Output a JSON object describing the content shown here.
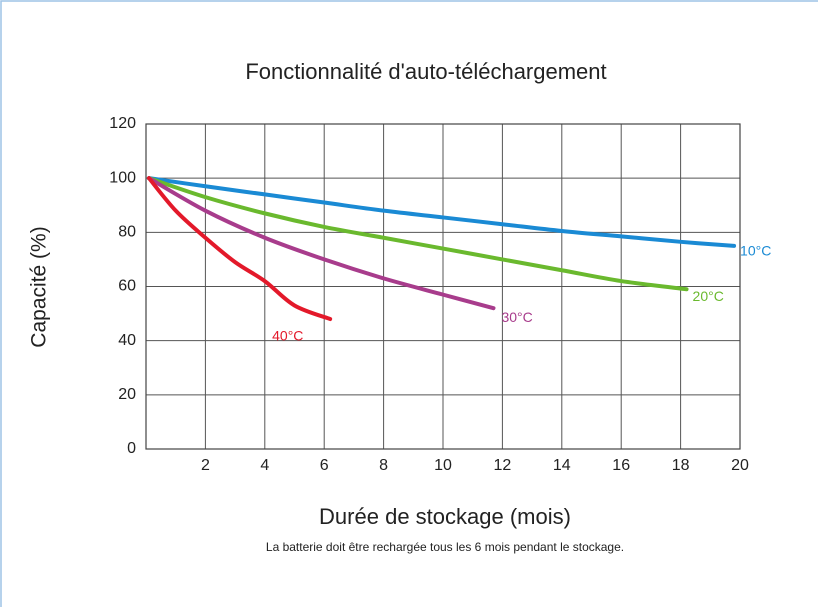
{
  "chart_data": {
    "type": "line",
    "title": "Fonctionnalité d'auto-téléchargement",
    "x_label": "Durée de stockage (mois)",
    "y_label": "Capacité (%)",
    "note": "La batterie doit être rechargée tous les 6 mois pendant le stockage.",
    "xlim": [
      0,
      20
    ],
    "xticks": [
      2,
      4,
      6,
      8,
      10,
      12,
      14,
      16,
      18,
      20
    ],
    "ylim": [
      0,
      120
    ],
    "yticks": [
      0,
      20,
      40,
      60,
      80,
      100,
      120
    ],
    "grid": true,
    "series": [
      {
        "name": "10°C",
        "color": "#1a8ad4",
        "x": [
          0.1,
          2,
          4,
          6,
          8,
          10,
          12,
          14,
          16,
          18,
          19.8
        ],
        "values": [
          100,
          97,
          94,
          91,
          88,
          85.5,
          83,
          80.5,
          78.5,
          76.5,
          75
        ]
      },
      {
        "name": "20°C",
        "color": "#6ab92e",
        "x": [
          0.1,
          2,
          4,
          6,
          8,
          10,
          12,
          14,
          16,
          18.2
        ],
        "values": [
          100,
          93,
          87,
          82,
          78,
          74,
          70,
          66,
          62,
          59
        ]
      },
      {
        "name": "30°C",
        "color": "#a83c8c",
        "x": [
          0.1,
          2,
          4,
          6,
          8,
          10,
          11.7
        ],
        "values": [
          100,
          88,
          78,
          70,
          63,
          57,
          52
        ]
      },
      {
        "name": "40°C",
        "color": "#e3192a",
        "x": [
          0.1,
          1,
          2,
          3,
          4,
          5,
          6.2
        ],
        "values": [
          100,
          88,
          78,
          69,
          62,
          53,
          48
        ]
      }
    ]
  }
}
